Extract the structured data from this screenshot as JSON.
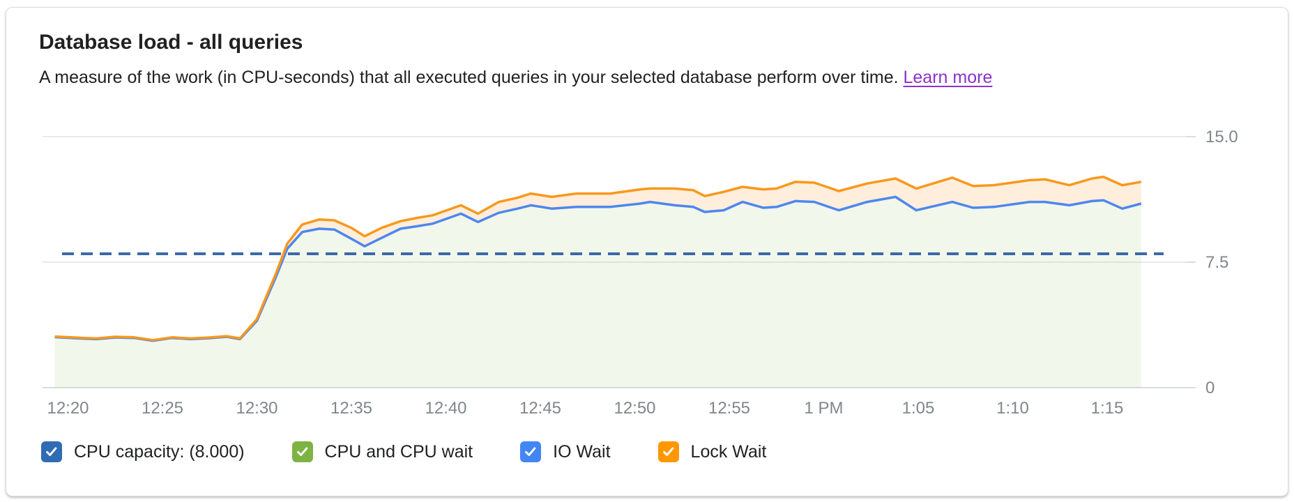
{
  "card": {
    "title": "Database load - all queries",
    "subtitle": "A measure of the work (in CPU-seconds) that all executed queries in your selected database perform over time.",
    "learn_more": "Learn more"
  },
  "colors": {
    "link": "#8a33c9",
    "grid": "#e8eaed",
    "baseline": "#dadce0",
    "axis_text": "#80868b",
    "text": "#202124"
  },
  "legend": {
    "items": [
      {
        "label": "CPU capacity: (8.000)",
        "color": "#2f6cb3",
        "checked": true
      },
      {
        "label": "CPU and CPU wait",
        "color": "#7cb342",
        "checked": true
      },
      {
        "label": "IO Wait",
        "color": "#4285f4",
        "checked": true
      },
      {
        "label": "Lock Wait",
        "color": "#ff9800",
        "checked": true
      }
    ]
  },
  "chart_data": {
    "type": "area",
    "title": "Database load - all queries",
    "xlabel": "",
    "ylabel": "CPU-seconds",
    "ylim": [
      0,
      15
    ],
    "grid": true,
    "legend_position": "bottom",
    "yticks": [
      {
        "value": 15.0,
        "label": "15.0"
      },
      {
        "value": 7.5,
        "label": "7.5"
      },
      {
        "value": 0,
        "label": "0"
      }
    ],
    "xticks": [
      {
        "m": 0,
        "label": "12:20"
      },
      {
        "m": 5,
        "label": "12:25"
      },
      {
        "m": 10,
        "label": "12:30"
      },
      {
        "m": 15,
        "label": "12:35"
      },
      {
        "m": 20,
        "label": "12:40"
      },
      {
        "m": 25,
        "label": "12:45"
      },
      {
        "m": 30,
        "label": "12:50"
      },
      {
        "m": 35,
        "label": "12:55"
      },
      {
        "m": 40,
        "label": "1 PM"
      },
      {
        "m": 45,
        "label": "1:05"
      },
      {
        "m": 50,
        "label": "1:10"
      },
      {
        "m": 55,
        "label": "1:15"
      }
    ],
    "capacity_line": {
      "name": "CPU capacity",
      "value": 8.0,
      "display": "(8.000)",
      "color": "#3b69a8",
      "style": "dashed"
    },
    "x_minutes_after_12_20": [
      -0.7,
      0.5,
      1.5,
      2.5,
      3.5,
      4.5,
      5.5,
      6.5,
      7.5,
      8.4,
      9.1,
      10,
      11,
      11.6,
      12.4,
      13.3,
      14.1,
      15,
      15.7,
      16.6,
      17.6,
      18.5,
      19.3,
      20.8,
      21.7,
      22.8,
      23.8,
      24.5,
      25.6,
      26.9,
      28.7,
      30.3,
      30.8,
      32.1,
      33.1,
      33.7,
      34.7,
      35.7,
      36.8,
      37.5,
      38.5,
      39.5,
      40.8,
      42.3,
      43.8,
      44.9,
      46.8,
      47.9,
      49,
      50.9,
      51.7,
      53,
      54.2,
      54.8,
      55.8,
      56.8
    ],
    "series": [
      {
        "name": "CPU, CPU wait and IO Wait (stacked top of IO Wait)",
        "line_color": "#4d87ee",
        "area_color": "rgba(124,179,66,0.10)",
        "values": [
          3.02,
          2.95,
          2.9,
          3,
          2.97,
          2.8,
          2.97,
          2.9,
          2.96,
          3.04,
          2.9,
          4,
          6.6,
          8.3,
          9.3,
          9.5,
          9.45,
          8.9,
          8.45,
          8.95,
          9.5,
          9.65,
          9.8,
          10.4,
          9.9,
          10.45,
          10.7,
          10.9,
          10.7,
          10.8,
          10.8,
          11,
          11.1,
          10.9,
          10.8,
          10.5,
          10.6,
          11.1,
          10.75,
          10.8,
          11.15,
          11.1,
          10.6,
          11.1,
          11.4,
          10.6,
          11.1,
          10.75,
          10.8,
          11.1,
          11.1,
          10.9,
          11.15,
          11.2,
          10.7,
          11
        ]
      },
      {
        "name": "Lock Wait (stacked top of Lock Wait)",
        "line_color": "#f8981d",
        "area_color": "rgba(248,152,29,0.16)",
        "values": [
          3.06,
          2.99,
          2.94,
          3.04,
          3.01,
          2.84,
          3.01,
          2.94,
          3,
          3.08,
          2.94,
          4.1,
          6.8,
          8.6,
          9.75,
          10.05,
          10,
          9.55,
          9.05,
          9.55,
          9.95,
          10.15,
          10.3,
          10.9,
          10.4,
          11.1,
          11.35,
          11.6,
          11.4,
          11.6,
          11.6,
          11.85,
          11.9,
          11.9,
          11.8,
          11.45,
          11.7,
          12,
          11.85,
          11.9,
          12.3,
          12.25,
          11.75,
          12.2,
          12.5,
          11.9,
          12.55,
          12.05,
          12.1,
          12.4,
          12.45,
          12.1,
          12.5,
          12.6,
          12.1,
          12.3
        ]
      }
    ]
  }
}
